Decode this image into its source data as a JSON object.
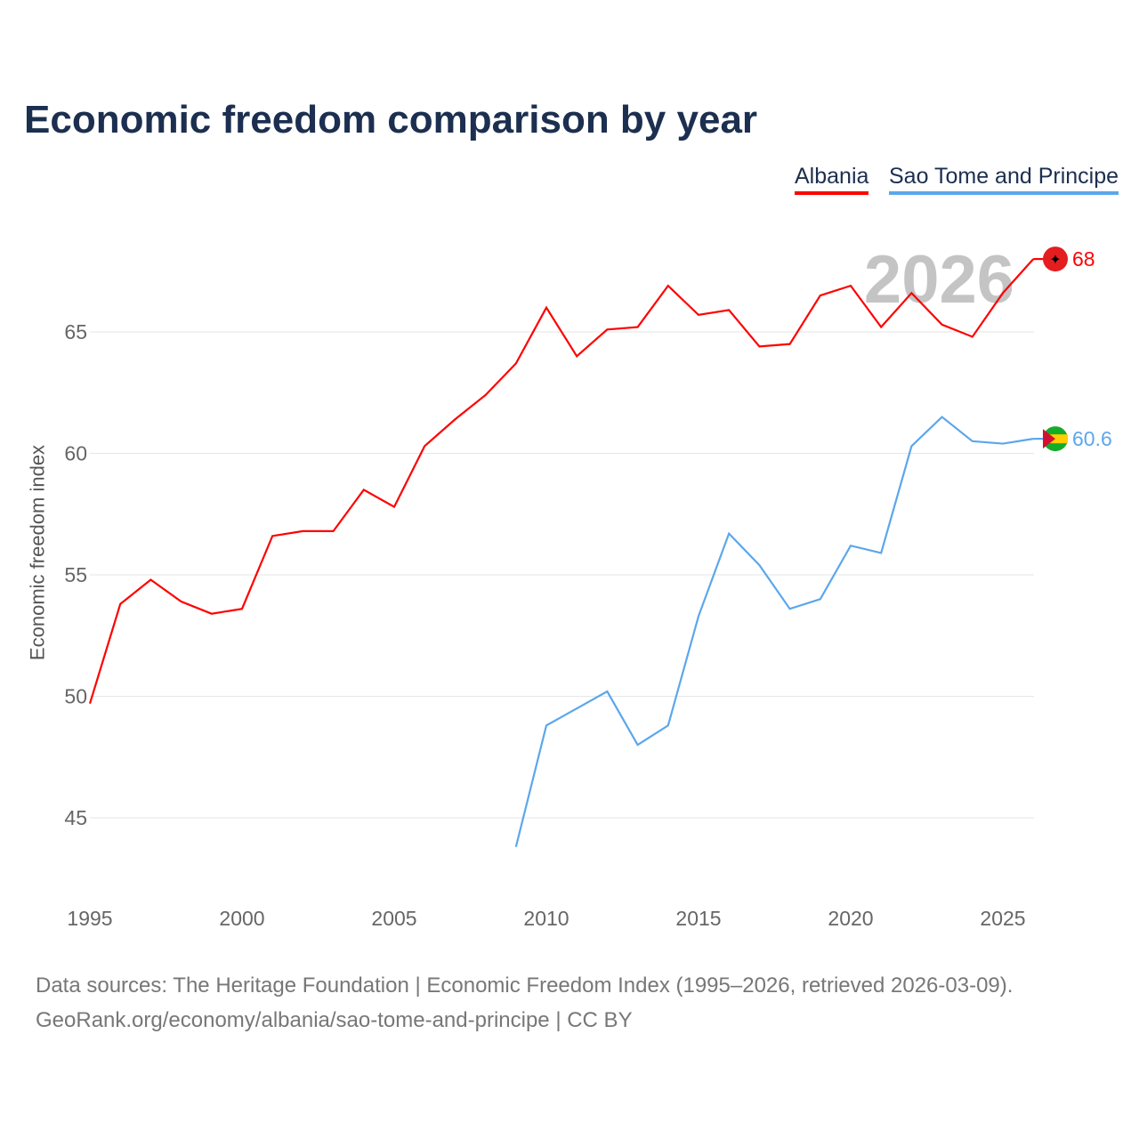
{
  "chart_data": {
    "type": "line",
    "title": "Economic freedom comparison by year",
    "xlabel": "",
    "ylabel": "Economic freedom index",
    "xlim": [
      1995,
      2026
    ],
    "ylim": [
      42.7,
      69.5
    ],
    "x_ticks": [
      1995,
      2000,
      2005,
      2010,
      2015,
      2020,
      2025
    ],
    "y_ticks": [
      45,
      50,
      55,
      60,
      65
    ],
    "grid": true,
    "legend_position": "top-right",
    "watermark_year": "2026",
    "series": [
      {
        "name": "Albania",
        "color": "#ff0000",
        "end_label": "68",
        "x": [
          1995,
          1996,
          1997,
          1998,
          1999,
          2000,
          2001,
          2002,
          2003,
          2004,
          2005,
          2006,
          2007,
          2008,
          2009,
          2010,
          2011,
          2012,
          2013,
          2014,
          2015,
          2016,
          2017,
          2018,
          2019,
          2020,
          2021,
          2022,
          2023,
          2024,
          2025,
          2026
        ],
        "values": [
          49.7,
          53.8,
          54.8,
          53.9,
          53.4,
          53.6,
          56.6,
          56.8,
          56.8,
          58.5,
          57.8,
          60.3,
          61.4,
          62.4,
          63.7,
          66.0,
          64.0,
          65.1,
          65.2,
          66.9,
          65.7,
          65.9,
          64.4,
          64.5,
          66.5,
          66.9,
          65.2,
          66.6,
          65.3,
          64.8,
          66.6,
          68.0
        ]
      },
      {
        "name": "Sao Tome and Principe",
        "color": "#5ba7ec",
        "end_label": "60.6",
        "x": [
          2009,
          2010,
          2011,
          2012,
          2013,
          2014,
          2015,
          2016,
          2017,
          2018,
          2019,
          2020,
          2021,
          2022,
          2023,
          2024,
          2025,
          2026
        ],
        "values": [
          43.8,
          48.8,
          49.5,
          50.2,
          48.0,
          48.8,
          53.3,
          56.7,
          55.4,
          53.6,
          54.0,
          56.2,
          55.9,
          60.3,
          61.5,
          60.5,
          60.4,
          60.6
        ]
      }
    ]
  },
  "source_line1": "Data sources: The Heritage Foundation | Economic Freedom Index (1995–2026, retrieved 2026-03-09).",
  "source_line2": "GeoRank.org/economy/albania/sao-tome-and-principe | CC BY"
}
